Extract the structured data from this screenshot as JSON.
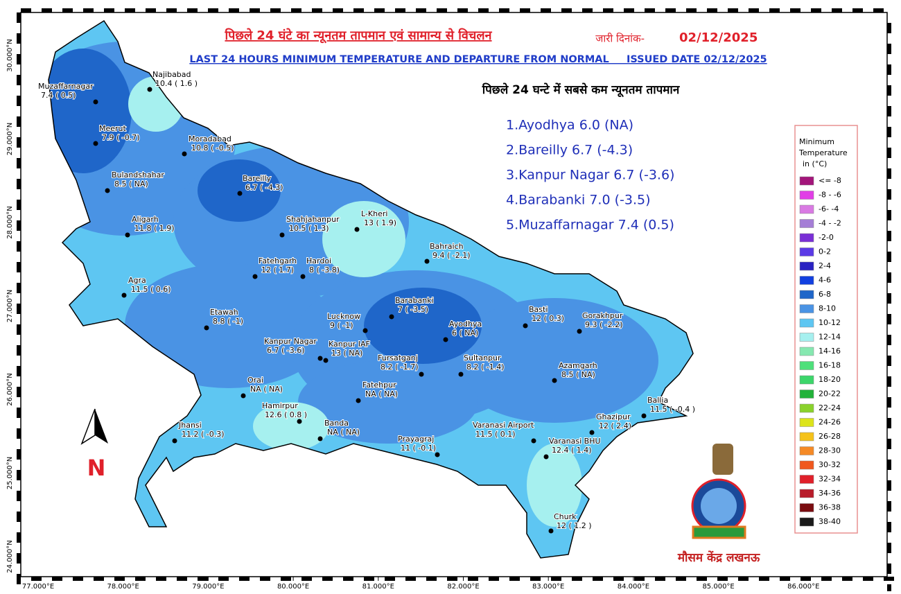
{
  "header": {
    "title_hindi": "पिछले 24 घंटे का न्यूनतम तापमान एवं सामान्य से विचलन",
    "issued_label_hindi": "जारी दिनांक-",
    "issued_date": "02/12/2025",
    "title_english": "LAST 24 HOURS MINIMUM TEMPERATURE AND DEPARTURE FROM NORMAL     ISSUED DATE 02/12/2025"
  },
  "lowest": {
    "title": "पिछले 24 घन्टे में सबसे कम न्यूनतम तापमान",
    "items": [
      "1.Ayodhya 6.0 (NA)",
      "2.Bareilly 6.7 (-4.3)",
      "3.Kanpur Nagar 6.7 (-3.6)",
      "4.Barabanki 7.0 (-3.5)",
      "5.Muzaffarnagar 7.4 (0.5)"
    ]
  },
  "stations": [
    {
      "name": "Najibabad",
      "reading": "10.4 ( 1.6 )"
    },
    {
      "name": "Muzaffarnagar",
      "reading": "7.4 ( 0.5)"
    },
    {
      "name": "Meerut",
      "reading": "7.9 ( -0.7)"
    },
    {
      "name": "Moradabad",
      "reading": "10.8 ( -0.5)"
    },
    {
      "name": "Bulandshahar",
      "reading": "8.5 ( NA)"
    },
    {
      "name": "Bareilly",
      "reading": "6.7 ( -4.3)"
    },
    {
      "name": "Aligarh",
      "reading": "11.8 ( 1.9)"
    },
    {
      "name": "Shahjahanpur",
      "reading": "10.5 ( 1.3)"
    },
    {
      "name": "L-Kheri",
      "reading": "13 ( 1.9)"
    },
    {
      "name": "Bahraich",
      "reading": "9.4 ( -2.1)"
    },
    {
      "name": "Fatehgarh",
      "reading": "12 ( 1.7)"
    },
    {
      "name": "Hardoi",
      "reading": "8 ( -3.8)"
    },
    {
      "name": "Agra",
      "reading": "11.5 ( 0.6)"
    },
    {
      "name": "Barabanki",
      "reading": "7 ( -3.5)"
    },
    {
      "name": "Basti",
      "reading": "12 ( 0.3)"
    },
    {
      "name": "Gorakhpur",
      "reading": "9.3 ( -2.2)"
    },
    {
      "name": "Lucknow",
      "reading": "9 ( -1)"
    },
    {
      "name": "Etawah",
      "reading": "8.8 ( -1)"
    },
    {
      "name": "Ayodhya",
      "reading": "6 ( NA)"
    },
    {
      "name": "Kanpur Nagar",
      "reading": "6.7 ( -3.6)"
    },
    {
      "name": "Kanpur IAF",
      "reading": "13 ( NA)"
    },
    {
      "name": "Fursatganj",
      "reading": "8.2 ( -1.7)"
    },
    {
      "name": "Sultanpur",
      "reading": "8.2 ( -1.4)"
    },
    {
      "name": "Azamgarh",
      "reading": "8.5 ( NA)"
    },
    {
      "name": "Orai",
      "reading": "NA ( NA)"
    },
    {
      "name": "Fatehpur",
      "reading": "NA ( NA)"
    },
    {
      "name": "Ballia",
      "reading": "11.5 ( -0.4 )"
    },
    {
      "name": "Hamirpur",
      "reading": "12.6 ( 0.8 )"
    },
    {
      "name": "Ghazipur",
      "reading": "12 ( 2.4)"
    },
    {
      "name": "Jhansi",
      "reading": "11.2 ( -0.3)"
    },
    {
      "name": "Banda",
      "reading": "NA ( NA)"
    },
    {
      "name": "Varanasi Airport",
      "reading": "11.5 ( 0.1)"
    },
    {
      "name": "Prayagraj",
      "reading": "11 ( -0.1)"
    },
    {
      "name": "Varanasi BHU",
      "reading": "12.4 ( 1.4)"
    },
    {
      "name": "Churk",
      "reading": "12 ( 1.2 )"
    }
  ],
  "legend": {
    "title": [
      "Minimum",
      "Temperature",
      "in (°C)"
    ],
    "items": [
      {
        "label": "<= -8",
        "color": "#a3157a"
      },
      {
        "label": "-8 - -6",
        "color": "#e13ee6"
      },
      {
        "label": "-6- -4",
        "color": "#d97ae3"
      },
      {
        "label": "-4 - -2",
        "color": "#a57ed6"
      },
      {
        "label": "-2-0",
        "color": "#7a2fd6"
      },
      {
        "label": "0-2",
        "color": "#5b3ae6"
      },
      {
        "label": "2-4",
        "color": "#2a22c2"
      },
      {
        "label": "4-6",
        "color": "#1240e0"
      },
      {
        "label": "6-8",
        "color": "#1f66c9"
      },
      {
        "label": "8-10",
        "color": "#4a93e4"
      },
      {
        "label": "10-12",
        "color": "#5ec6f2"
      },
      {
        "label": "12-14",
        "color": "#a6f0ef"
      },
      {
        "label": "14-16",
        "color": "#86e8b0"
      },
      {
        "label": "16-18",
        "color": "#4ee07a"
      },
      {
        "label": "18-20",
        "color": "#3cd66a"
      },
      {
        "label": "20-22",
        "color": "#22b23a"
      },
      {
        "label": "22-24",
        "color": "#8ad22c"
      },
      {
        "label": "24-26",
        "color": "#dce41a"
      },
      {
        "label": "26-28",
        "color": "#f5c21a"
      },
      {
        "label": "28-30",
        "color": "#f58a26"
      },
      {
        "label": "30-32",
        "color": "#f0581e"
      },
      {
        "label": "32-34",
        "color": "#e0202a"
      },
      {
        "label": "34-36",
        "color": "#b81c2a"
      },
      {
        "label": "36-38",
        "color": "#7a0c10"
      },
      {
        "label": "38-40",
        "color": "#1a1a1a"
      }
    ]
  },
  "axes": {
    "lon_ticks": [
      "77.000°E",
      "78.000°E",
      "79.000°E",
      "80.000°E",
      "81.000°E",
      "82.000°E",
      "83.000°E",
      "84.000°E",
      "85.000°E",
      "86.000°E"
    ],
    "lat_ticks": [
      "30.000°N",
      "29.000°N",
      "28.000°N",
      "27.000°N",
      "26.000°N",
      "25.000°N",
      "24.000°N"
    ]
  },
  "north": "N",
  "footer": "मौसम केंद्र लखनऊ"
}
